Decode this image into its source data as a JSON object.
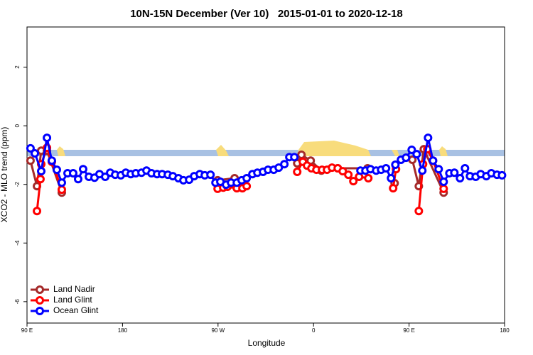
{
  "chart_data": {
    "type": "line",
    "title": "10N-15N December (Ver 10)   2015-01-01 to 2020-12-18",
    "x_label": "Longitude",
    "y_label": "XCO2 - MLO trend (ppm)",
    "xlim": [
      90,
      540
    ],
    "ylim": [
      -6.73,
      3.37
    ],
    "xticks": [
      {
        "value": 90,
        "label": "90 E"
      },
      180,
      {
        "value": 270,
        "label": "90 W"
      },
      {
        "value": 360,
        "label": "0"
      },
      {
        "value": 450,
        "label": "90 E"
      },
      {
        "value": 540,
        "label": "180"
      }
    ],
    "yticks": [
      -6,
      -4,
      -2,
      0,
      2
    ],
    "legend": "bottom-left",
    "series": [
      {
        "name": "Land Nadir",
        "color": "#a52a2a",
        "x": [
          93.3,
          99.4,
          103.4,
          108.8,
          122.8,
          null,
          269.6,
          285.6,
          292.3,
          null,
          344.6,
          348.6,
          357.3,
          367.4,
          382.8,
          410.9,
          null,
          436.4,
          null,
          453.1,
          459.2,
          463.9,
          482.6
        ],
        "values": [
          -1.19,
          -2.06,
          -0.85,
          -0.85,
          -2.28,
          null,
          -1.86,
          -1.79,
          -2.06,
          null,
          -1.28,
          -0.99,
          -1.19,
          -1.53,
          -1.45,
          -1.45,
          null,
          -1.96,
          null,
          -1.16,
          -2.06,
          -0.8,
          -2.28
        ]
      },
      {
        "name": "Land Glint",
        "color": "#ff0000",
        "x": [
          99.4,
          102.7,
          103.4,
          108.8,
          113.4,
          122.8,
          null,
          269.6,
          274.9,
          278.9,
          287.7,
          293.0,
          297.0,
          null,
          344.6,
          349.9,
          353.9,
          358.0,
          362.7,
          368.0,
          372.7,
          377.4,
          382.8,
          387.5,
          392.8,
          397.5,
          402.9,
          411.6,
          null,
          435.0,
          437.7,
          null,
          459.2,
          463.2,
          467.2,
          472.6,
          482.6
        ],
        "values": [
          -2.91,
          -1.82,
          -1.31,
          -0.75,
          -1.23,
          -2.18,
          null,
          -2.15,
          -2.11,
          -2.08,
          -2.13,
          -2.13,
          -2.06,
          null,
          -1.57,
          -1.23,
          -1.36,
          -1.45,
          -1.5,
          -1.5,
          -1.5,
          -1.43,
          -1.45,
          -1.55,
          -1.67,
          -1.89,
          -1.74,
          -1.79,
          null,
          -2.13,
          -1.48,
          null,
          -2.91,
          -1.31,
          -0.8,
          -1.19,
          -2.15
        ]
      },
      {
        "name": "Ocean Glint",
        "color": "#0000ff",
        "x": [
          93.3,
          97.4,
          103.4,
          108.8,
          113.4,
          118.1,
          122.8,
          128.2,
          133.5,
          138.2,
          142.9,
          148.3,
          153.6,
          158.3,
          163.7,
          168.4,
          173.1,
          178.4,
          183.1,
          187.8,
          192.5,
          197.9,
          202.6,
          207.3,
          212.6,
          217.3,
          222.7,
          227.4,
          232.7,
          237.4,
          242.8,
          247.5,
          252.8,
          257.5,
          262.9,
          267.6,
          272.2,
          277.6,
          282.3,
          287.7,
          292.3,
          297.0,
          302.4,
          307.1,
          312.4,
          317.1,
          322.5,
          327.2,
          332.5,
          337.2,
          341.9,
          null,
          404.2,
          408.9,
          413.6,
          419.0,
          423.7,
          428.3,
          433.0,
          437.1,
          442.4,
          447.1,
          452.5,
          457.2,
          462.5,
          467.9,
          472.6,
          477.9,
          482.6,
          488.0,
          492.7,
          498.0,
          502.7,
          507.4,
          512.8,
          517.5,
          522.8,
          527.5,
          532.9,
          537.6
        ],
        "values": [
          -0.77,
          -0.94,
          -1.55,
          -0.41,
          -1.19,
          -1.5,
          -1.94,
          -1.62,
          -1.62,
          -1.82,
          -1.48,
          -1.74,
          -1.77,
          -1.65,
          -1.74,
          -1.6,
          -1.67,
          -1.69,
          -1.6,
          -1.65,
          -1.62,
          -1.6,
          -1.53,
          -1.62,
          -1.65,
          -1.65,
          -1.67,
          -1.72,
          -1.79,
          -1.86,
          -1.84,
          -1.72,
          -1.65,
          -1.69,
          -1.67,
          -1.94,
          -1.91,
          -2.01,
          -1.94,
          -1.94,
          -1.86,
          -1.79,
          -1.65,
          -1.6,
          -1.57,
          -1.5,
          -1.5,
          -1.43,
          -1.31,
          -1.07,
          -1.07,
          null,
          -1.53,
          -1.53,
          -1.48,
          -1.53,
          -1.5,
          -1.45,
          -1.79,
          -1.33,
          -1.16,
          -1.09,
          -0.82,
          -0.97,
          -1.53,
          -0.41,
          -1.19,
          -1.48,
          -1.91,
          -1.62,
          -1.6,
          -1.79,
          -1.45,
          -1.72,
          -1.74,
          -1.65,
          -1.72,
          -1.62,
          -1.67,
          -1.69
        ]
      }
    ]
  }
}
